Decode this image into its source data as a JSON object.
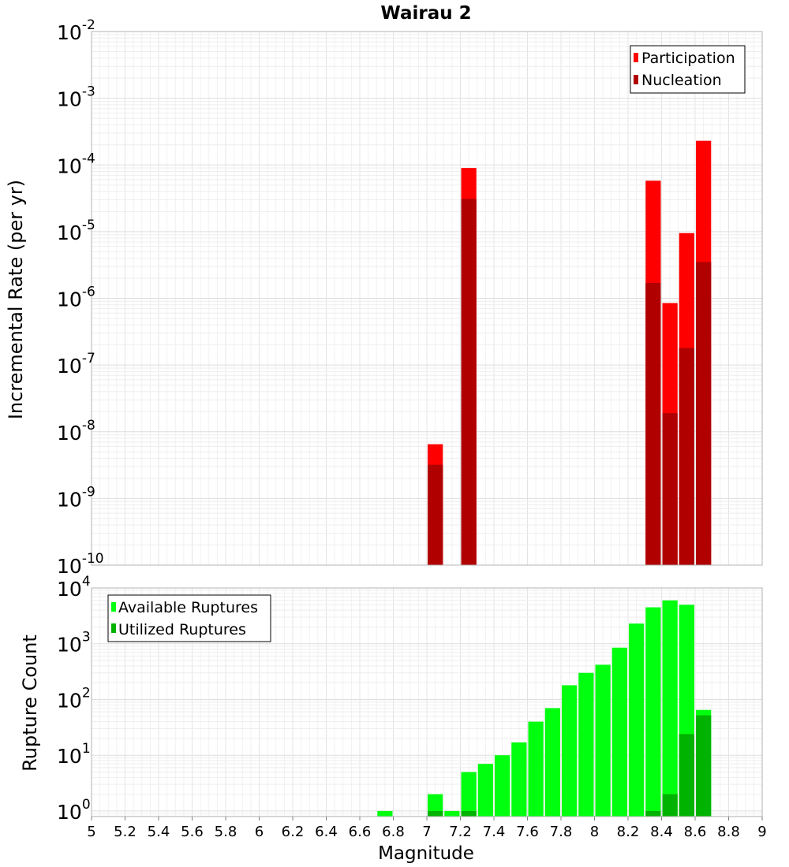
{
  "chart_data": [
    {
      "type": "bar",
      "title": "Wairau 2",
      "xlabel": "",
      "ylabel": "Incremental Rate (per yr)",
      "yscale": "log",
      "xlim": [
        5,
        9
      ],
      "ylim_exponents": [
        -10,
        -2
      ],
      "grid": true,
      "legend": "top-right",
      "bar_width": 0.1,
      "y_tick_labels": [
        {
          "base": "10",
          "exp": "-2"
        },
        {
          "base": "10",
          "exp": "-3"
        },
        {
          "base": "10",
          "exp": "-4"
        },
        {
          "base": "10",
          "exp": "-5"
        },
        {
          "base": "10",
          "exp": "-6"
        },
        {
          "base": "10",
          "exp": "-7"
        },
        {
          "base": "10",
          "exp": "-8"
        },
        {
          "base": "10",
          "exp": "-9"
        },
        {
          "base": "10",
          "exp": "-10"
        }
      ],
      "series": [
        {
          "name": "Participation",
          "color": "#ff0000",
          "x": [
            7.05,
            7.25,
            8.35,
            8.45,
            8.55,
            8.65
          ],
          "values": [
            6.5e-09,
            9e-05,
            5.8e-05,
            8.5e-07,
            9.5e-06,
            0.00023
          ]
        },
        {
          "name": "Nucleation",
          "color": "#b00000",
          "x": [
            7.05,
            7.25,
            8.35,
            8.45,
            8.55,
            8.65
          ],
          "values": [
            3.2e-09,
            3.1e-05,
            1.7e-06,
            1.9e-08,
            1.8e-07,
            3.5e-06
          ]
        }
      ]
    },
    {
      "type": "bar",
      "title": "",
      "xlabel": "Magnitude",
      "ylabel": "Rupture Count",
      "yscale": "log",
      "xlim": [
        5,
        9
      ],
      "ylim_exponents": [
        -0.1,
        4
      ],
      "grid": true,
      "legend": "top-left",
      "bar_width": 0.1,
      "x_ticks": [
        "5",
        "5.2",
        "5.4",
        "5.6",
        "5.8",
        "6",
        "6.2",
        "6.4",
        "6.6",
        "6.8",
        "7",
        "7.2",
        "7.4",
        "7.6",
        "7.8",
        "8",
        "8.2",
        "8.4",
        "8.6",
        "8.8",
        "9"
      ],
      "y_tick_labels": [
        {
          "base": "10",
          "exp": "4"
        },
        {
          "base": "10",
          "exp": "3"
        },
        {
          "base": "10",
          "exp": "2"
        },
        {
          "base": "10",
          "exp": "1"
        },
        {
          "base": "10",
          "exp": "0"
        }
      ],
      "series": [
        {
          "name": "Available Ruptures",
          "color": "#00ff0f",
          "x": [
            6.75,
            7.05,
            7.15,
            7.25,
            7.35,
            7.45,
            7.55,
            7.65,
            7.75,
            7.85,
            7.95,
            8.05,
            8.15,
            8.25,
            8.35,
            8.45,
            8.55,
            8.65
          ],
          "values": [
            1,
            2,
            1,
            5,
            7,
            10,
            17,
            40,
            70,
            180,
            300,
            420,
            850,
            2300,
            4500,
            6000,
            5000,
            65
          ]
        },
        {
          "name": "Utilized Ruptures",
          "color": "#00b300",
          "x": [
            7.05,
            7.25,
            8.35,
            8.45,
            8.55,
            8.65
          ],
          "values": [
            1,
            1,
            1,
            2,
            24,
            52
          ]
        }
      ]
    }
  ]
}
